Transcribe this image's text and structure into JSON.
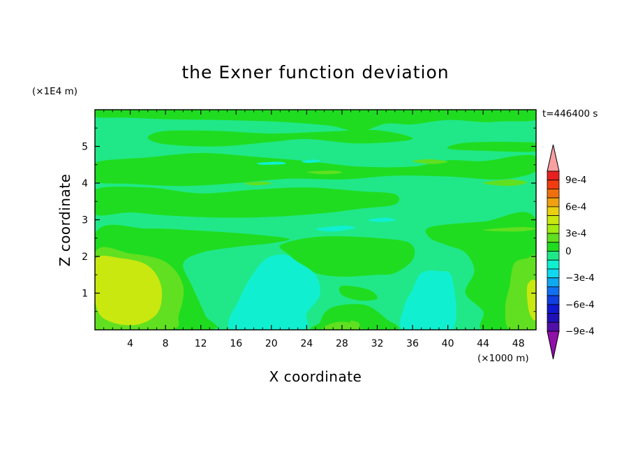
{
  "chart_data": {
    "type": "heatmap",
    "title": "the Exner function deviation",
    "xlabel": "X coordinate",
    "ylabel": "Z coordinate",
    "x_unit": "(×1000 m)",
    "y_unit": "(×1E4 m)",
    "time_label": "t=446400 s",
    "xlim": [
      0,
      50
    ],
    "ylim": [
      0,
      6
    ],
    "x_ticks": [
      4,
      8,
      12,
      16,
      20,
      24,
      28,
      32,
      36,
      40,
      44,
      48
    ],
    "y_ticks": [
      1,
      2,
      3,
      4,
      5
    ],
    "colorbar": {
      "tick_labels": [
        "9e-4",
        "6e-4",
        "3e-4",
        "0",
        "−3e-4",
        "−6e-4",
        "−9e-4"
      ],
      "levels_top_to_bottom": [
        0.0009,
        0.0006,
        0.0003,
        0,
        -0.0003,
        -0.0006,
        -0.0009
      ],
      "colors_top_to_bottom": [
        "#f8a0a0",
        "#e82020",
        "#f03c10",
        "#f07010",
        "#f0a010",
        "#e8d010",
        "#c8e810",
        "#a0ec10",
        "#60e020",
        "#20dc20",
        "#20e888",
        "#10f0d0",
        "#10d8f0",
        "#10a8f0",
        "#1070f0",
        "#1040e0",
        "#1018d0",
        "#2010b8",
        "#5010a8",
        "#9010a8"
      ]
    },
    "field_colors": {
      "near_zero": "#20e888",
      "slightly_positive": "#20dc20",
      "positive": "#60e020",
      "more_positive": "#a0ec10",
      "max_positive": "#c8e810",
      "slightly_negative": "#10f0d0"
    },
    "regions": [
      {
        "level": "slightly_positive",
        "pts": [
          [
            0,
            6
          ],
          [
            50,
            6
          ],
          [
            50,
            5.72
          ],
          [
            46,
            5.68
          ],
          [
            44,
            5.66
          ],
          [
            40,
            5.72
          ],
          [
            36,
            5.6
          ],
          [
            33,
            5.62
          ],
          [
            30,
            5.4
          ],
          [
            27,
            5.55
          ],
          [
            24,
            5.62
          ],
          [
            20,
            5.68
          ],
          [
            14,
            5.72
          ],
          [
            8,
            5.74
          ],
          [
            4,
            5.78
          ],
          [
            0,
            5.8
          ]
        ]
      },
      {
        "level": "slightly_positive",
        "pts": [
          [
            8,
            5.42
          ],
          [
            14,
            5.42
          ],
          [
            20,
            5.35
          ],
          [
            26,
            5.4
          ],
          [
            32,
            5.44
          ],
          [
            36,
            5.2
          ],
          [
            30,
            5.08
          ],
          [
            24,
            5.2
          ],
          [
            20,
            5.12
          ],
          [
            14,
            5.0
          ],
          [
            8,
            5.06
          ],
          [
            6,
            5.24
          ]
        ]
      },
      {
        "level": "slightly_positive",
        "pts": [
          [
            0,
            4.55
          ],
          [
            6,
            4.7
          ],
          [
            12,
            4.82
          ],
          [
            18,
            4.72
          ],
          [
            24,
            4.6
          ],
          [
            30,
            4.45
          ],
          [
            36,
            4.45
          ],
          [
            40,
            4.62
          ],
          [
            44,
            4.6
          ],
          [
            48,
            4.75
          ],
          [
            50,
            4.72
          ],
          [
            50,
            4.32
          ],
          [
            46,
            4.1
          ],
          [
            40,
            4.18
          ],
          [
            34,
            4.2
          ],
          [
            28,
            4.1
          ],
          [
            22,
            4.12
          ],
          [
            16,
            4.0
          ],
          [
            10,
            3.92
          ],
          [
            4,
            3.98
          ],
          [
            0,
            4.05
          ]
        ]
      },
      {
        "level": "slightly_positive",
        "pts": [
          [
            42,
            5.1
          ],
          [
            48,
            5.12
          ],
          [
            50,
            5.08
          ],
          [
            50,
            4.86
          ],
          [
            44,
            4.88
          ],
          [
            40,
            4.94
          ]
        ]
      },
      {
        "level": "slightly_positive",
        "pts": [
          [
            0,
            3.82
          ],
          [
            6,
            3.88
          ],
          [
            12,
            3.72
          ],
          [
            18,
            3.82
          ],
          [
            24,
            3.88
          ],
          [
            30,
            3.78
          ],
          [
            34,
            3.7
          ],
          [
            34,
            3.42
          ],
          [
            30,
            3.3
          ],
          [
            26,
            3.18
          ],
          [
            20,
            3.08
          ],
          [
            14,
            3.06
          ],
          [
            8,
            3.12
          ],
          [
            4,
            3.2
          ],
          [
            0,
            3.15
          ]
        ]
      },
      {
        "level": "slightly_positive",
        "pts": [
          [
            0,
            2.62
          ],
          [
            6,
            2.76
          ],
          [
            12,
            2.7
          ],
          [
            18,
            2.6
          ],
          [
            22,
            2.48
          ],
          [
            20,
            2.36
          ],
          [
            16,
            2.26
          ],
          [
            12,
            2.1
          ],
          [
            10,
            1.8
          ],
          [
            11,
            1.2
          ],
          [
            12.5,
            0.4
          ],
          [
            13,
            0
          ],
          [
            0,
            0
          ]
        ]
      },
      {
        "level": "slightly_positive",
        "pts": [
          [
            21,
            2.3
          ],
          [
            24,
            2.5
          ],
          [
            28,
            2.55
          ],
          [
            34,
            2.46
          ],
          [
            36,
            2.3
          ],
          [
            36,
            1.9
          ],
          [
            34,
            1.55
          ],
          [
            32,
            1.5
          ],
          [
            28,
            1.45
          ],
          [
            25,
            1.55
          ],
          [
            23,
            1.85
          ],
          [
            22,
            2.05
          ]
        ]
      },
      {
        "level": "slightly_positive",
        "pts": [
          [
            38,
            2.8
          ],
          [
            44,
            2.95
          ],
          [
            50,
            3.0
          ],
          [
            50,
            0
          ],
          [
            44,
            0
          ],
          [
            44,
            0.5
          ],
          [
            42,
            1.0
          ],
          [
            43,
            1.6
          ],
          [
            42,
            2.1
          ],
          [
            40,
            2.3
          ],
          [
            38,
            2.5
          ]
        ]
      },
      {
        "level": "slightly_positive",
        "pts": [
          [
            25,
            0
          ],
          [
            34,
            0
          ],
          [
            33,
            0.3
          ],
          [
            31,
            0.65
          ],
          [
            29,
            0.7
          ],
          [
            27,
            0.62
          ],
          [
            26,
            0.45
          ],
          [
            25.5,
            0.2
          ]
        ]
      },
      {
        "level": "slightly_positive",
        "pts": [
          [
            28,
            1.2
          ],
          [
            31,
            1.1
          ],
          [
            32,
            0.85
          ],
          [
            30,
            0.8
          ],
          [
            28,
            0.95
          ]
        ]
      },
      {
        "level": "positive",
        "pts": [
          [
            0,
            2.1
          ],
          [
            4,
            2.08
          ],
          [
            8,
            1.85
          ],
          [
            10,
            1.2
          ],
          [
            9.5,
            0.4
          ],
          [
            8.5,
            0
          ],
          [
            0,
            0
          ]
        ]
      },
      {
        "level": "positive",
        "pts": [
          [
            47.5,
            1.8
          ],
          [
            49,
            1.95
          ],
          [
            50,
            1.9
          ],
          [
            50,
            0
          ],
          [
            47,
            0
          ],
          [
            46.5,
            0.6
          ],
          [
            47,
            1.2
          ]
        ]
      },
      {
        "level": "positive",
        "pts": [
          [
            26,
            0
          ],
          [
            30,
            0
          ],
          [
            29.5,
            0.15
          ],
          [
            28,
            0.22
          ],
          [
            26.5,
            0.15
          ]
        ]
      },
      {
        "level": "positive",
        "pts": [
          [
            29,
            0.25
          ],
          [
            29.8,
            0.2
          ],
          [
            30,
            0.12
          ],
          [
            29.2,
            0.1
          ]
        ]
      },
      {
        "level": "positive",
        "pts": [
          [
            36,
            4.6
          ],
          [
            38,
            4.65
          ],
          [
            40,
            4.58
          ],
          [
            38,
            4.52
          ]
        ]
      },
      {
        "level": "positive",
        "pts": [
          [
            44,
            4.0
          ],
          [
            47,
            4.1
          ],
          [
            49,
            4.02
          ],
          [
            47,
            3.92
          ]
        ]
      },
      {
        "level": "positive",
        "pts": [
          [
            24,
            4.3
          ],
          [
            27,
            4.34
          ],
          [
            28,
            4.28
          ],
          [
            26,
            4.24
          ]
        ]
      },
      {
        "level": "positive",
        "pts": [
          [
            44,
            2.72
          ],
          [
            48,
            2.8
          ],
          [
            50,
            2.76
          ],
          [
            48,
            2.68
          ]
        ]
      },
      {
        "level": "positive",
        "pts": [
          [
            17,
            4.0
          ],
          [
            19,
            4.04
          ],
          [
            20,
            3.98
          ],
          [
            18,
            3.94
          ]
        ]
      },
      {
        "level": "max_positive",
        "pts": [
          [
            0,
            1.9
          ],
          [
            3,
            1.95
          ],
          [
            6,
            1.75
          ],
          [
            7.5,
            1.2
          ],
          [
            7.2,
            0.5
          ],
          [
            5,
            0.15
          ],
          [
            2,
            0.2
          ],
          [
            0.2,
            0.6
          ]
        ]
      },
      {
        "level": "max_positive",
        "pts": [
          [
            49,
            1.2
          ],
          [
            50,
            1.3
          ],
          [
            50,
            0.3
          ],
          [
            49.2,
            0.5
          ]
        ]
      },
      {
        "level": "slightly_negative",
        "pts": [
          [
            15.5,
            0
          ],
          [
            23.5,
            0
          ],
          [
            24,
            0.45
          ],
          [
            25.5,
            0.95
          ],
          [
            25,
            1.5
          ],
          [
            23,
            1.85
          ],
          [
            21.5,
            2.05
          ],
          [
            19.5,
            1.95
          ],
          [
            18,
            1.55
          ],
          [
            16.5,
            0.9
          ]
        ]
      },
      {
        "level": "slightly_negative",
        "pts": [
          [
            37,
            1.55
          ],
          [
            39,
            1.6
          ],
          [
            40.5,
            1.4
          ],
          [
            40.5,
            0
          ],
          [
            35,
            0
          ],
          [
            35,
            0.6
          ],
          [
            36,
            1.1
          ]
        ]
      },
      {
        "level": "slightly_negative",
        "pts": [
          [
            25,
            2.75
          ],
          [
            28,
            2.84
          ],
          [
            29.5,
            2.78
          ],
          [
            27,
            2.68
          ]
        ]
      },
      {
        "level": "slightly_negative",
        "pts": [
          [
            31,
            3.0
          ],
          [
            33,
            3.06
          ],
          [
            34,
            2.98
          ],
          [
            32,
            2.94
          ]
        ]
      },
      {
        "level": "slightly_negative",
        "pts": [
          [
            23.5,
            4.6
          ],
          [
            25,
            4.64
          ],
          [
            25.5,
            4.58
          ],
          [
            24,
            4.55
          ]
        ]
      },
      {
        "level": "slightly_negative",
        "pts": [
          [
            18.5,
            4.55
          ],
          [
            21,
            4.58
          ],
          [
            21.5,
            4.52
          ],
          [
            19,
            4.5
          ]
        ]
      }
    ]
  }
}
